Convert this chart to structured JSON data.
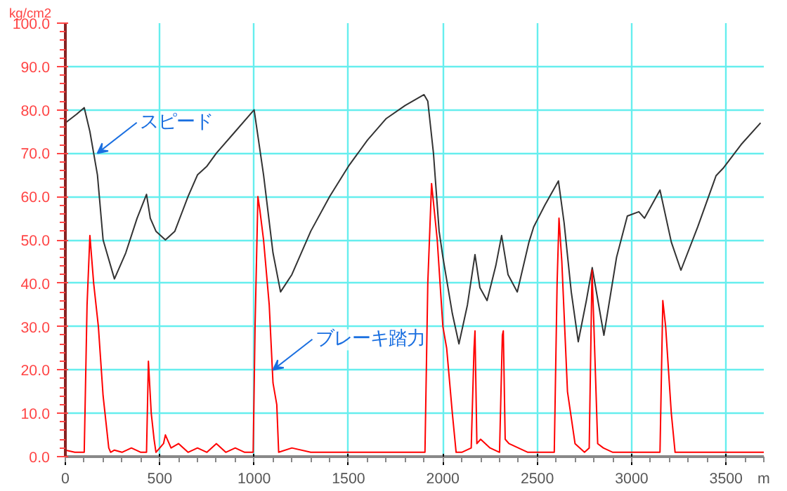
{
  "chart_data": {
    "type": "line",
    "xlabel": "m",
    "ylabel": "kg/cm2",
    "series": [
      {
        "color": "#333333",
        "x": [
          0,
          60,
          100,
          130,
          170,
          200,
          260,
          320,
          380,
          430,
          450,
          480,
          530,
          580,
          650,
          700,
          750,
          800,
          900,
          990,
          1000,
          1050,
          1100,
          1140,
          1200,
          1300,
          1400,
          1500,
          1600,
          1700,
          1800,
          1900,
          1920,
          1950,
          1980,
          2000,
          2050,
          2085,
          2130,
          2170,
          2196,
          2234,
          2280,
          2311,
          2345,
          2394,
          2456,
          2481,
          2540,
          2612,
          2642,
          2680,
          2717,
          2760,
          2791,
          2853,
          2920,
          2977,
          3038,
          3068,
          3150,
          3210,
          3261,
          3350,
          3447,
          3484,
          3580,
          3683
        ],
        "values": [
          77,
          79,
          80.5,
          75,
          65,
          50,
          41,
          47,
          55,
          60.5,
          55,
          52,
          50,
          52,
          60,
          65,
          67,
          70,
          75,
          79.5,
          80,
          65,
          47,
          38,
          42,
          52,
          60,
          67,
          73,
          78,
          81,
          83.5,
          82,
          70,
          52,
          46,
          33,
          26,
          35,
          46.6,
          39,
          36,
          44,
          51,
          42,
          38,
          49.5,
          53,
          58,
          63.6,
          54,
          38,
          26.5,
          36,
          43.6,
          28,
          46,
          55.5,
          56.5,
          55,
          61.5,
          49.5,
          43,
          53,
          64.8,
          66.5,
          72,
          77
        ]
      },
      {
        "color": "#ff0000",
        "x": [
          0,
          50,
          80,
          100,
          115,
          130,
          150,
          175,
          200,
          210,
          230,
          240,
          260,
          300,
          350,
          400,
          430,
          440,
          455,
          470,
          480,
          520,
          530,
          560,
          600,
          650,
          700,
          750,
          800,
          850,
          900,
          950,
          995,
          1005,
          1020,
          1030,
          1050,
          1080,
          1100,
          1120,
          1130,
          1200,
          1300,
          1400,
          1500,
          1600,
          1700,
          1800,
          1880,
          1905,
          1920,
          1940,
          1970,
          2000,
          2020,
          2050,
          2070,
          2100,
          2150,
          2165,
          2170,
          2180,
          2200,
          2250,
          2300,
          2315,
          2320,
          2330,
          2350,
          2400,
          2450,
          2500,
          2550,
          2590,
          2605,
          2615,
          2630,
          2660,
          2700,
          2750,
          2775,
          2790,
          2800,
          2820,
          2850,
          2900,
          2950,
          3000,
          3050,
          3100,
          3150,
          3165,
          3180,
          3210,
          3230,
          3300,
          3400,
          3500,
          3600,
          3700
        ],
        "values": [
          1.5,
          1,
          1,
          1,
          35,
          51,
          40,
          30,
          14,
          10,
          2,
          1,
          1.5,
          1,
          2,
          1,
          1,
          22,
          10,
          4,
          1,
          3,
          5,
          2,
          3,
          1,
          2,
          1,
          3,
          1,
          2,
          1,
          1,
          30,
          60,
          57,
          50,
          35,
          17,
          12,
          1,
          2,
          1,
          1,
          1,
          1,
          1,
          1,
          1,
          1,
          40,
          63,
          50,
          30,
          25,
          10,
          1,
          1,
          2,
          25,
          29,
          3,
          4,
          2,
          1,
          28,
          29,
          4,
          3,
          2,
          1,
          1,
          1,
          1,
          40,
          55,
          45,
          15,
          3,
          1,
          2,
          43,
          30,
          3,
          2,
          1,
          1,
          1,
          1,
          1,
          1,
          36,
          30,
          10,
          1,
          1,
          1,
          1,
          1,
          1
        ]
      }
    ],
    "xlim": [
      0,
      3700
    ],
    "xticks": [
      0,
      500,
      1000,
      1500,
      2000,
      2500,
      3000,
      3500
    ],
    "ylim": [
      0,
      100
    ],
    "yticks": [
      {
        "value": 0,
        "label": "0.0"
      },
      {
        "value": 10,
        "label": "10.0"
      },
      {
        "value": 20,
        "label": "20.0"
      },
      {
        "value": 30,
        "label": "30.0"
      },
      {
        "value": 40,
        "label": "40.0"
      },
      {
        "value": 50,
        "label": "50.0"
      },
      {
        "value": 60,
        "label": "60.0"
      },
      {
        "value": 70,
        "label": "70.0"
      },
      {
        "value": 80,
        "label": "80.0"
      },
      {
        "value": 90,
        "label": "90.0"
      },
      {
        "value": 100,
        "label": "100.0"
      }
    ],
    "grid": true,
    "annotations": [
      {
        "text": "スピード",
        "x": 170,
        "y": 70
      },
      {
        "text": "ブレーキ踏力",
        "x": 1100,
        "y": 20
      }
    ]
  }
}
